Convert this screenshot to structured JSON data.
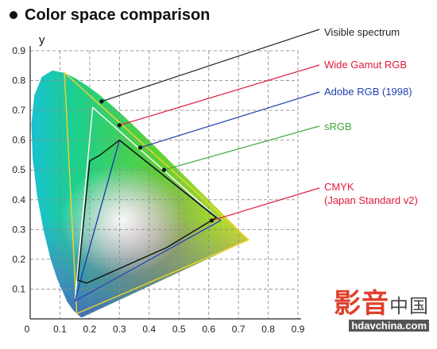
{
  "chart_data": {
    "type": "scatter",
    "title": "Color space comparison",
    "ylabel": "y",
    "xlabel": "",
    "xlim": [
      0,
      0.9
    ],
    "ylim": [
      0,
      0.9
    ],
    "x_ticks": [
      "0",
      "0.1",
      "0.2",
      "0.3",
      "0.4",
      "0.5",
      "0.6",
      "0.7",
      "0.8",
      "0.9"
    ],
    "y_ticks": [
      "0.1",
      "0.2",
      "0.3",
      "0.4",
      "0.5",
      "0.6",
      "0.7",
      "0.8",
      "0.9"
    ],
    "grid": true,
    "legend_placement": "right",
    "series": [
      {
        "name": "Visible spectrum",
        "color": "#222222",
        "x": [
          0.1741,
          0.1738,
          0.1733,
          0.1726,
          0.1714,
          0.1689,
          0.1644,
          0.1566,
          0.144,
          0.1241,
          0.0913,
          0.0687,
          0.0454,
          0.0235,
          0.0082,
          0.0039,
          0.0139,
          0.0389,
          0.0743,
          0.1142,
          0.1547,
          0.1929,
          0.2296,
          0.2658,
          0.3016,
          0.3373,
          0.3731,
          0.4087,
          0.4441,
          0.4788,
          0.5125,
          0.5448,
          0.5752,
          0.6029,
          0.627,
          0.6482,
          0.6658,
          0.6801,
          0.6915,
          0.7006,
          0.7079,
          0.714,
          0.719,
          0.723,
          0.726,
          0.7283,
          0.73,
          0.7311,
          0.732,
          0.7334,
          0.7347
        ],
        "y": [
          0.005,
          0.005,
          0.0048,
          0.0048,
          0.0051,
          0.0069,
          0.0109,
          0.0177,
          0.0297,
          0.0578,
          0.1327,
          0.2007,
          0.295,
          0.4127,
          0.5384,
          0.6548,
          0.7502,
          0.812,
          0.8338,
          0.8262,
          0.8059,
          0.7816,
          0.7543,
          0.7243,
          0.6923,
          0.6589,
          0.6245,
          0.5896,
          0.5547,
          0.5202,
          0.4866,
          0.4544,
          0.4242,
          0.3965,
          0.3725,
          0.3514,
          0.334,
          0.3197,
          0.3083,
          0.2993,
          0.292,
          0.2859,
          0.2809,
          0.277,
          0.274,
          0.2717,
          0.27,
          0.2689,
          0.268,
          0.2666,
          0.2653
        ]
      },
      {
        "name": "Wide Gamut RGB",
        "color": "#e01a3c",
        "x": [
          0.7347,
          0.1152,
          0.1566
        ],
        "y": [
          0.2653,
          0.8264,
          0.0177
        ]
      },
      {
        "name": "Adobe RGB (1998)",
        "color": "#1f3fae",
        "x": [
          0.64,
          0.21,
          0.15
        ],
        "y": [
          0.33,
          0.71,
          0.06
        ]
      },
      {
        "name": "sRGB",
        "color": "#3ea83e",
        "x": [
          0.64,
          0.3,
          0.15
        ],
        "y": [
          0.33,
          0.6,
          0.06
        ]
      },
      {
        "name": "CMYK\n(Japan Standard v2)",
        "color": "#e01a3c",
        "x": [
          0.625,
          0.3,
          0.235,
          0.2,
          0.16,
          0.19,
          0.46
        ],
        "y": [
          0.34,
          0.6,
          0.55,
          0.53,
          0.13,
          0.12,
          0.24
        ]
      }
    ]
  },
  "legend": [
    {
      "label": "Visible spectrum",
      "color": "#222222",
      "point_x": 0.24,
      "point_y": 0.73
    },
    {
      "label": "Wide Gamut RGB",
      "color": "#e01a3c",
      "point_x": 0.3,
      "point_y": 0.65
    },
    {
      "label": "Adobe RGB (1998)",
      "color": "#1f3fae",
      "point_x": 0.37,
      "point_y": 0.575
    },
    {
      "label": "sRGB",
      "color": "#3ea83e",
      "point_x": 0.45,
      "point_y": 0.5
    },
    {
      "label": "CMYK\n(Japan Standard v2)",
      "color": "#e01a3c",
      "point_x": 0.61,
      "point_y": 0.33
    }
  ],
  "watermark": {
    "main": "影音",
    "sub": "中国",
    "url": "hdavchina.com"
  }
}
